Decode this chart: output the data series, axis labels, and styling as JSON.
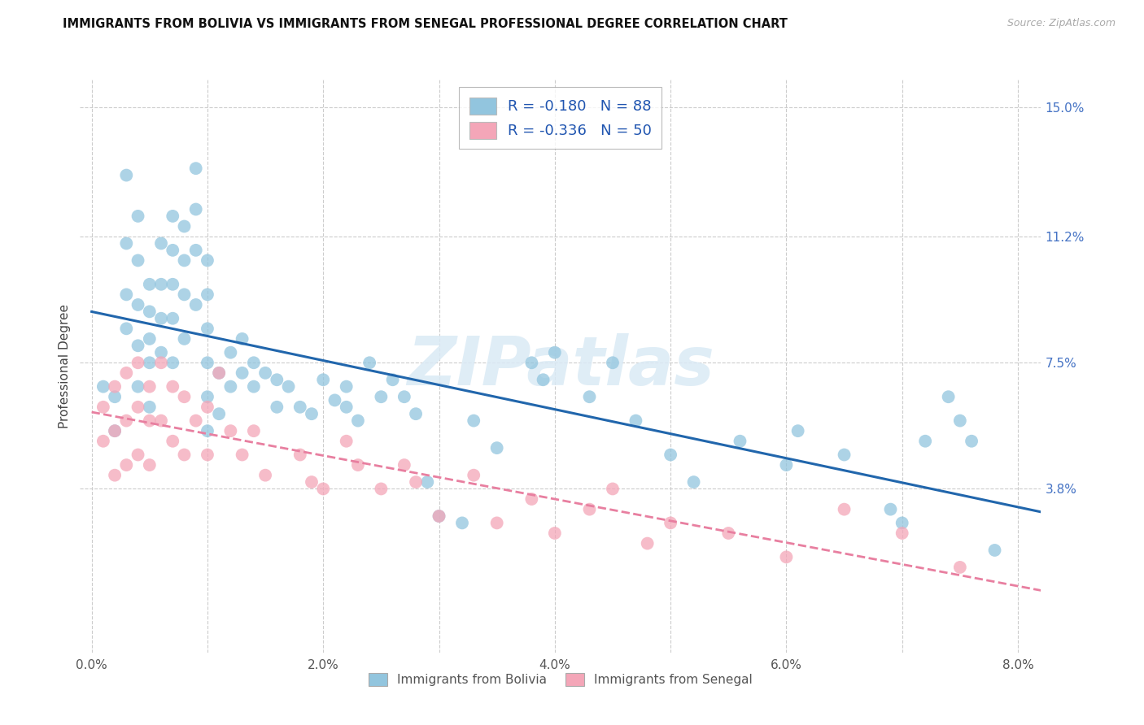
{
  "title": "IMMIGRANTS FROM BOLIVIA VS IMMIGRANTS FROM SENEGAL PROFESSIONAL DEGREE CORRELATION CHART",
  "source": "Source: ZipAtlas.com",
  "ylabel": "Professional Degree",
  "xlim": [
    -0.001,
    0.082
  ],
  "ylim": [
    -0.01,
    0.158
  ],
  "xtick_positions": [
    0.0,
    0.01,
    0.02,
    0.03,
    0.04,
    0.05,
    0.06,
    0.07,
    0.08
  ],
  "xtick_labels": [
    "0.0%",
    "",
    "2.0%",
    "",
    "4.0%",
    "",
    "6.0%",
    "",
    "8.0%"
  ],
  "ytick_right_labels": [
    "15.0%",
    "11.2%",
    "7.5%",
    "3.8%"
  ],
  "ytick_right_vals": [
    0.15,
    0.112,
    0.075,
    0.038
  ],
  "bolivia_R": -0.18,
  "bolivia_N": 88,
  "senegal_R": -0.336,
  "senegal_N": 50,
  "bolivia_color": "#92c5de",
  "senegal_color": "#f4a6b8",
  "bolivia_line_color": "#2166ac",
  "senegal_line_color": "#e87fa0",
  "watermark": "ZIPatlas",
  "bolivia_x": [
    0.001,
    0.002,
    0.002,
    0.003,
    0.003,
    0.003,
    0.003,
    0.004,
    0.004,
    0.004,
    0.004,
    0.004,
    0.005,
    0.005,
    0.005,
    0.005,
    0.005,
    0.006,
    0.006,
    0.006,
    0.006,
    0.007,
    0.007,
    0.007,
    0.007,
    0.007,
    0.008,
    0.008,
    0.008,
    0.008,
    0.009,
    0.009,
    0.009,
    0.009,
    0.01,
    0.01,
    0.01,
    0.01,
    0.01,
    0.01,
    0.011,
    0.011,
    0.012,
    0.012,
    0.013,
    0.013,
    0.014,
    0.014,
    0.015,
    0.016,
    0.016,
    0.017,
    0.018,
    0.019,
    0.02,
    0.021,
    0.022,
    0.022,
    0.023,
    0.024,
    0.025,
    0.026,
    0.027,
    0.028,
    0.029,
    0.03,
    0.032,
    0.033,
    0.035,
    0.038,
    0.039,
    0.04,
    0.043,
    0.045,
    0.047,
    0.05,
    0.052,
    0.056,
    0.06,
    0.061,
    0.065,
    0.069,
    0.07,
    0.072,
    0.074,
    0.075,
    0.076,
    0.078
  ],
  "bolivia_y": [
    0.068,
    0.065,
    0.055,
    0.13,
    0.11,
    0.095,
    0.085,
    0.118,
    0.105,
    0.092,
    0.08,
    0.068,
    0.098,
    0.09,
    0.082,
    0.075,
    0.062,
    0.11,
    0.098,
    0.088,
    0.078,
    0.118,
    0.108,
    0.098,
    0.088,
    0.075,
    0.115,
    0.105,
    0.095,
    0.082,
    0.132,
    0.12,
    0.108,
    0.092,
    0.105,
    0.095,
    0.085,
    0.075,
    0.065,
    0.055,
    0.072,
    0.06,
    0.078,
    0.068,
    0.082,
    0.072,
    0.075,
    0.068,
    0.072,
    0.07,
    0.062,
    0.068,
    0.062,
    0.06,
    0.07,
    0.064,
    0.068,
    0.062,
    0.058,
    0.075,
    0.065,
    0.07,
    0.065,
    0.06,
    0.04,
    0.03,
    0.028,
    0.058,
    0.05,
    0.075,
    0.07,
    0.078,
    0.065,
    0.075,
    0.058,
    0.048,
    0.04,
    0.052,
    0.045,
    0.055,
    0.048,
    0.032,
    0.028,
    0.052,
    0.065,
    0.058,
    0.052,
    0.02
  ],
  "senegal_x": [
    0.001,
    0.001,
    0.002,
    0.002,
    0.002,
    0.003,
    0.003,
    0.003,
    0.004,
    0.004,
    0.004,
    0.005,
    0.005,
    0.005,
    0.006,
    0.006,
    0.007,
    0.007,
    0.008,
    0.008,
    0.009,
    0.01,
    0.01,
    0.011,
    0.012,
    0.013,
    0.014,
    0.015,
    0.018,
    0.019,
    0.02,
    0.022,
    0.023,
    0.025,
    0.027,
    0.028,
    0.03,
    0.033,
    0.035,
    0.038,
    0.04,
    0.043,
    0.045,
    0.048,
    0.05,
    0.055,
    0.06,
    0.065,
    0.07,
    0.075
  ],
  "senegal_y": [
    0.062,
    0.052,
    0.068,
    0.055,
    0.042,
    0.072,
    0.058,
    0.045,
    0.075,
    0.062,
    0.048,
    0.068,
    0.058,
    0.045,
    0.075,
    0.058,
    0.068,
    0.052,
    0.065,
    0.048,
    0.058,
    0.062,
    0.048,
    0.072,
    0.055,
    0.048,
    0.055,
    0.042,
    0.048,
    0.04,
    0.038,
    0.052,
    0.045,
    0.038,
    0.045,
    0.04,
    0.03,
    0.042,
    0.028,
    0.035,
    0.025,
    0.032,
    0.038,
    0.022,
    0.028,
    0.025,
    0.018,
    0.032,
    0.025,
    0.015
  ]
}
